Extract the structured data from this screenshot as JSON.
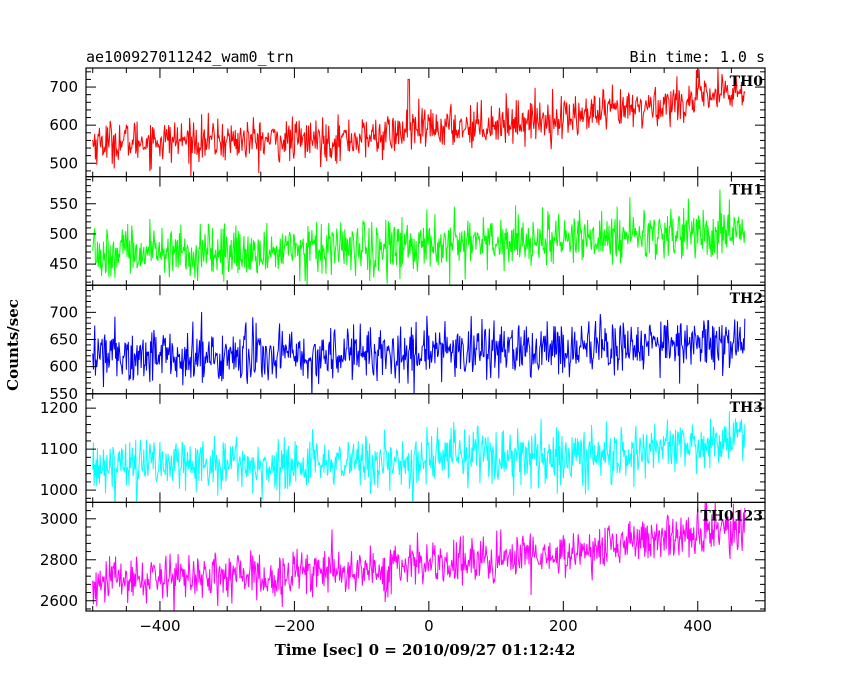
{
  "chart_data": {
    "type": "line",
    "title_left": "ae100927011242_wam0_trn",
    "title_right": "Bin time: 1.0 s",
    "xlabel": "Time [sec] 0 = 2010/09/27 01:12:42",
    "ylabel": "Counts/sec",
    "xlim": [
      -510,
      500
    ],
    "x_data_range": [
      -500,
      470
    ],
    "bin_time": 1.0,
    "x_ticks": [
      -400,
      -200,
      0,
      200,
      400
    ],
    "x_tick_labels": [
      "−400",
      "−200",
      "0",
      "200",
      "400"
    ],
    "grid": false,
    "panels": [
      {
        "label": "TH0",
        "color": "#ff0000",
        "ylim": [
          465,
          750
        ],
        "y_ticks": [
          500,
          600,
          700
        ],
        "baseline": [
          [
            -500,
            555
          ],
          [
            -400,
            560
          ],
          [
            -300,
            560
          ],
          [
            -200,
            560
          ],
          [
            -100,
            565
          ],
          [
            0,
            590
          ],
          [
            100,
            605
          ],
          [
            200,
            620
          ],
          [
            300,
            640
          ],
          [
            400,
            670
          ],
          [
            470,
            690
          ]
        ],
        "noise_sd": 28,
        "events": [
          {
            "x": -30,
            "y": 720
          }
        ]
      },
      {
        "label": "TH1",
        "color": "#00ff00",
        "ylim": [
          415,
          595
        ],
        "y_ticks": [
          450,
          500,
          550
        ],
        "baseline": [
          [
            -500,
            468
          ],
          [
            -300,
            470
          ],
          [
            -100,
            475
          ],
          [
            0,
            482
          ],
          [
            200,
            490
          ],
          [
            400,
            500
          ],
          [
            470,
            502
          ]
        ],
        "noise_sd": 22,
        "events": []
      },
      {
        "label": "TH2",
        "color": "#0000ff",
        "ylim": [
          550,
          750
        ],
        "y_ticks": [
          550,
          600,
          650,
          700
        ],
        "baseline": [
          [
            -500,
            625
          ],
          [
            -300,
            620
          ],
          [
            -100,
            625
          ],
          [
            0,
            628
          ],
          [
            200,
            632
          ],
          [
            400,
            645
          ],
          [
            470,
            650
          ]
        ],
        "noise_sd": 24,
        "events": []
      },
      {
        "label": "TH3",
        "color": "#00ffff",
        "ylim": [
          970,
          1235
        ],
        "y_ticks": [
          1000,
          1100,
          1200
        ],
        "baseline": [
          [
            -500,
            1060
          ],
          [
            -300,
            1062
          ],
          [
            -100,
            1068
          ],
          [
            0,
            1075
          ],
          [
            200,
            1085
          ],
          [
            300,
            1095
          ],
          [
            400,
            1115
          ],
          [
            470,
            1130
          ]
        ],
        "noise_sd": 33,
        "events": []
      },
      {
        "label": "TH0123",
        "color": "#ff00ff",
        "ylim": [
          2550,
          3080
        ],
        "y_ticks": [
          2600,
          2800,
          3000
        ],
        "baseline": [
          [
            -500,
            2705
          ],
          [
            -300,
            2715
          ],
          [
            -100,
            2745
          ],
          [
            0,
            2785
          ],
          [
            100,
            2800
          ],
          [
            200,
            2830
          ],
          [
            300,
            2880
          ],
          [
            400,
            2935
          ],
          [
            470,
            2965
          ]
        ],
        "noise_sd": 55,
        "events": []
      }
    ]
  }
}
